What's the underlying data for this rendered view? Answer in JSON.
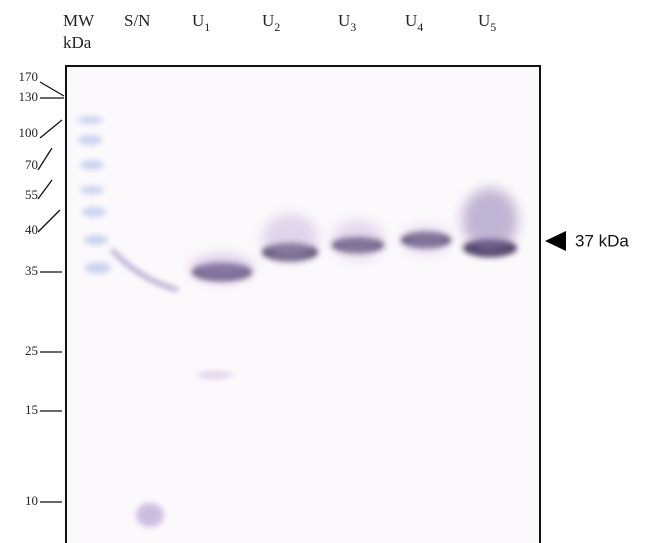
{
  "lanes": {
    "mw": [
      "MW",
      "kDa"
    ],
    "sample": "S/N",
    "units": [
      {
        "letter": "U",
        "sub": "1"
      },
      {
        "letter": "U",
        "sub": "2"
      },
      {
        "letter": "U",
        "sub": "3"
      },
      {
        "letter": "U",
        "sub": "4"
      },
      {
        "letter": "U",
        "sub": "5"
      }
    ]
  },
  "markers": [
    "170",
    "130",
    "100",
    "70",
    "55",
    "40",
    "35",
    "25",
    "15",
    "10"
  ],
  "arrow_label": "37 kDa"
}
